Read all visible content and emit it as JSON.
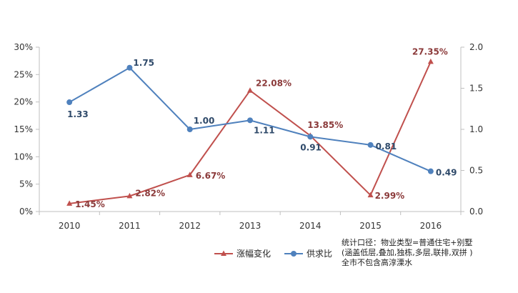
{
  "chart_data": {
    "type": "line",
    "categories": [
      "2010",
      "2011",
      "2012",
      "2013",
      "2014",
      "2015",
      "2016"
    ],
    "series": [
      {
        "name": "涨幅变化",
        "axis": "left",
        "color": "#c0504d",
        "marker": "triangle",
        "values": [
          1.45,
          2.82,
          6.67,
          22.08,
          13.85,
          2.99,
          27.35
        ],
        "labels": [
          "1.45%",
          "2.82%",
          "6.67%",
          "22.08%",
          "13.85%",
          "2.99%",
          "27.35%"
        ]
      },
      {
        "name": "供求比",
        "axis": "right",
        "color": "#4f81bd",
        "marker": "circle",
        "values": [
          1.33,
          1.75,
          1.0,
          1.11,
          0.91,
          0.81,
          0.49
        ],
        "labels": [
          "1.33",
          "1.75",
          "1.00",
          "1.11",
          "0.91",
          "0.81",
          "0.49"
        ]
      }
    ],
    "y_left": {
      "ylim": [
        0,
        30
      ],
      "ticks": [
        0,
        5,
        10,
        15,
        20,
        25,
        30
      ],
      "tick_labels": [
        "0%",
        "5%",
        "10%",
        "15%",
        "20%",
        "25%",
        "30%"
      ]
    },
    "y_right": {
      "ylim": [
        0,
        2
      ],
      "ticks": [
        0,
        0.5,
        1.0,
        1.5,
        2.0
      ],
      "tick_labels": [
        "0.0",
        "0.5",
        "1.0",
        "1.5",
        "2.0"
      ]
    },
    "legend_position": "bottom-center",
    "grid": false
  },
  "note": {
    "lines": [
      "统计口径：物业类型=普通住宅+别墅",
      "(涵盖低层,叠加,独栋,多层,联排,双拼 )",
      "全市不包含高淳溧水"
    ]
  }
}
